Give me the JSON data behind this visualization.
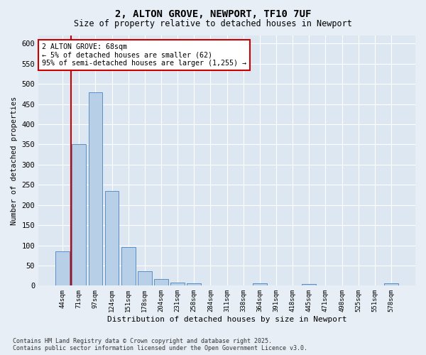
{
  "title_line1": "2, ALTON GROVE, NEWPORT, TF10 7UF",
  "title_line2": "Size of property relative to detached houses in Newport",
  "xlabel": "Distribution of detached houses by size in Newport",
  "ylabel": "Number of detached properties",
  "categories": [
    "44sqm",
    "71sqm",
    "97sqm",
    "124sqm",
    "151sqm",
    "178sqm",
    "204sqm",
    "231sqm",
    "258sqm",
    "284sqm",
    "311sqm",
    "338sqm",
    "364sqm",
    "391sqm",
    "418sqm",
    "445sqm",
    "471sqm",
    "498sqm",
    "525sqm",
    "551sqm",
    "578sqm"
  ],
  "values": [
    85,
    350,
    480,
    235,
    95,
    35,
    17,
    8,
    5,
    0,
    0,
    0,
    5,
    0,
    0,
    4,
    0,
    0,
    0,
    0,
    5
  ],
  "bar_color": "#b8cfe8",
  "bar_edge_color": "#5b8ec4",
  "marker_line_color": "#cc0000",
  "annotation_text": "2 ALTON GROVE: 68sqm\n← 5% of detached houses are smaller (62)\n95% of semi-detached houses are larger (1,255) →",
  "annotation_box_color": "#ffffff",
  "annotation_box_edge": "#cc0000",
  "ylim": [
    0,
    620
  ],
  "yticks": [
    0,
    50,
    100,
    150,
    200,
    250,
    300,
    350,
    400,
    450,
    500,
    550,
    600
  ],
  "background_color": "#e8eef5",
  "plot_background": "#dce7f2",
  "grid_color": "#ffffff",
  "footnote": "Contains HM Land Registry data © Crown copyright and database right 2025.\nContains public sector information licensed under the Open Government Licence v3.0."
}
